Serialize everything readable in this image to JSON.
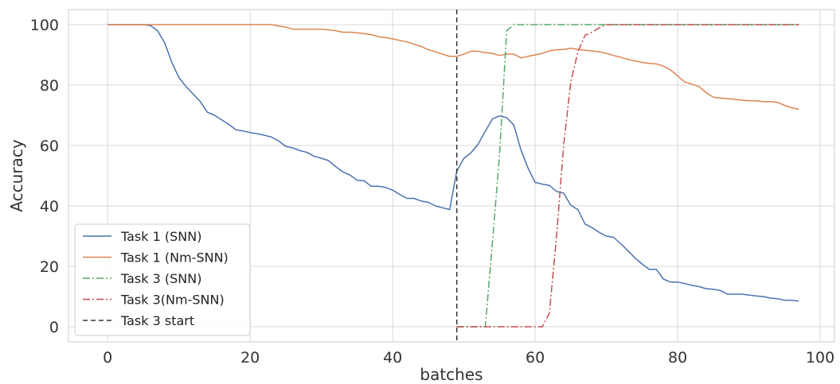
{
  "chart_data": {
    "type": "line",
    "title": "",
    "xlabel": "batches",
    "ylabel": "Accuracy",
    "xlim": [
      -5.5,
      102
    ],
    "ylim": [
      -5,
      105
    ],
    "xticks": [
      0,
      20,
      40,
      60,
      80,
      100
    ],
    "yticks": [
      0,
      20,
      40,
      60,
      80,
      100
    ],
    "grid": true,
    "legend_position": "lower-left",
    "vline": {
      "name": "Task 3 start",
      "x": 49,
      "color": "#333333",
      "style": "dashed"
    },
    "series": [
      {
        "name": "Task 1 (SNN)",
        "color": "#4c72b0",
        "style": "solid",
        "x": [
          0,
          1,
          2,
          3,
          4,
          5,
          6,
          7,
          8,
          9,
          10,
          11,
          12,
          13,
          14,
          15,
          16,
          17,
          18,
          19,
          20,
          21,
          22,
          23,
          24,
          25,
          26,
          27,
          28,
          29,
          30,
          31,
          32,
          33,
          34,
          35,
          36,
          37,
          38,
          39,
          40,
          41,
          42,
          43,
          44,
          45,
          46,
          47,
          48,
          49,
          50,
          51,
          52,
          53,
          54,
          55,
          56,
          57,
          58,
          59,
          60,
          61,
          62,
          63,
          64,
          65,
          66,
          67,
          68,
          69,
          70,
          71,
          72,
          73,
          74,
          75,
          76,
          77,
          78,
          79,
          80,
          81,
          82,
          83,
          84,
          85,
          86,
          87,
          88,
          89,
          90,
          91,
          92,
          93,
          94,
          95,
          96,
          97
        ],
        "y": [
          100,
          100,
          100,
          100,
          100,
          100,
          99.7,
          98,
          94,
          87.5,
          82.5,
          79.5,
          77,
          74.5,
          71,
          70,
          68.5,
          67,
          65.2,
          64.8,
          64.3,
          63.9,
          63.4,
          62.8,
          61.5,
          59.7,
          59.2,
          58.3,
          57.7,
          56.4,
          55.8,
          55,
          53,
          51.3,
          50.2,
          48.5,
          48.3,
          46.5,
          46.5,
          46.1,
          45.2,
          43.8,
          42.5,
          42.5,
          41.6,
          41.2,
          40,
          39.4,
          38.8,
          51.5,
          55.8,
          57.6,
          60.5,
          64.7,
          68.8,
          69.8,
          69.2,
          66.8,
          58.5,
          52.5,
          47.8,
          47.2,
          46.8,
          44.8,
          44.2,
          40.2,
          38.8,
          34,
          32.8,
          31.2,
          30,
          29.6,
          27.5,
          25.2,
          22.8,
          20.8,
          19,
          19,
          15.8,
          14.8,
          14.8,
          14.3,
          13.7,
          13.3,
          12.6,
          12.4,
          12,
          10.8,
          10.8,
          10.8,
          10.5,
          10.2,
          10,
          9.5,
          9.3,
          8.8,
          8.8,
          8.5
        ]
      },
      {
        "name": "Task 1 (Nm-SNN)",
        "color": "#dd8452",
        "style": "solid",
        "x": [
          0,
          1,
          2,
          3,
          4,
          5,
          6,
          7,
          8,
          9,
          10,
          11,
          12,
          13,
          14,
          15,
          16,
          17,
          18,
          19,
          20,
          21,
          22,
          23,
          24,
          25,
          26,
          27,
          28,
          29,
          30,
          31,
          32,
          33,
          34,
          35,
          36,
          37,
          38,
          39,
          40,
          41,
          42,
          43,
          44,
          45,
          46,
          47,
          48,
          49,
          50,
          51,
          52,
          53,
          54,
          55,
          56,
          57,
          58,
          59,
          60,
          61,
          62,
          63,
          64,
          65,
          66,
          67,
          68,
          69,
          70,
          71,
          72,
          73,
          74,
          75,
          76,
          77,
          78,
          79,
          80,
          81,
          82,
          83,
          84,
          85,
          86,
          87,
          88,
          89,
          90,
          91,
          92,
          93,
          94,
          95,
          96,
          97
        ],
        "y": [
          100,
          100,
          100,
          100,
          100,
          100,
          100,
          100,
          100,
          100,
          100,
          100,
          100,
          100,
          100,
          100,
          100,
          100,
          100,
          100,
          100,
          100,
          100,
          100,
          99.5,
          99.2,
          98.5,
          98.5,
          98.5,
          98.5,
          98.5,
          98.3,
          98,
          97.5,
          97.5,
          97.3,
          97,
          96.7,
          96,
          95.7,
          95.3,
          94.8,
          94.3,
          93.5,
          92.8,
          91.7,
          91,
          90.2,
          89.5,
          89.5,
          90.3,
          91.2,
          91.2,
          90.7,
          90.5,
          89.8,
          90.3,
          90.2,
          89,
          89.5,
          90,
          90.5,
          91.3,
          91.7,
          91.8,
          92.2,
          91.8,
          91.5,
          91.3,
          91,
          90.5,
          89.8,
          89.2,
          88.5,
          88,
          87.5,
          87.2,
          87,
          86.3,
          85,
          83,
          81,
          80.3,
          79.5,
          77.5,
          76,
          75.7,
          75.5,
          75.3,
          75,
          74.8,
          74.8,
          74.5,
          74.5,
          74.3,
          73.3,
          72.5,
          72
        ]
      },
      {
        "name": "Task 3 (SNN)",
        "color": "#55a868",
        "style": "dashdot",
        "x": [
          49,
          50,
          51,
          52,
          53,
          54,
          55,
          56,
          57,
          58,
          59,
          60,
          61,
          62,
          63,
          64,
          65,
          66,
          67,
          68,
          69,
          70,
          71,
          72,
          73,
          74,
          75,
          76,
          77,
          78,
          79,
          80,
          81,
          82,
          83,
          84,
          85,
          86,
          87,
          88,
          89,
          90,
          91,
          92,
          93,
          94,
          95,
          96,
          97
        ],
        "y": [
          0,
          0,
          0,
          0,
          0,
          28,
          57,
          98,
          100,
          100,
          100,
          100,
          100,
          100,
          100,
          100,
          100,
          100,
          100,
          100,
          100,
          100,
          100,
          100,
          100,
          100,
          100,
          100,
          100,
          100,
          100,
          100,
          100,
          100,
          100,
          100,
          100,
          100,
          100,
          100,
          100,
          100,
          100,
          100,
          100,
          100,
          100,
          100,
          100
        ]
      },
      {
        "name": "Task 3(Nm-SNN)",
        "color": "#c44e52",
        "style": "dashdot",
        "x": [
          49,
          50,
          51,
          52,
          53,
          54,
          55,
          56,
          57,
          58,
          59,
          60,
          61,
          62,
          63,
          64,
          65,
          66,
          67,
          68,
          69,
          70,
          71,
          72,
          73,
          74,
          75,
          76,
          77,
          78,
          79,
          80,
          81,
          82,
          83,
          84,
          85,
          86,
          87,
          88,
          89,
          90,
          91,
          92,
          93,
          94,
          95,
          96,
          97
        ],
        "y": [
          0,
          0,
          0,
          0,
          0,
          0,
          0,
          0,
          0,
          0,
          0,
          0,
          0,
          4.5,
          30,
          60,
          81,
          91,
          96.5,
          97.5,
          99,
          100,
          100,
          100,
          100,
          100,
          100,
          100,
          100,
          100,
          100,
          100,
          100,
          100,
          100,
          100,
          100,
          100,
          100,
          100,
          100,
          100,
          100,
          100,
          100,
          100,
          100,
          100,
          100
        ]
      }
    ]
  }
}
